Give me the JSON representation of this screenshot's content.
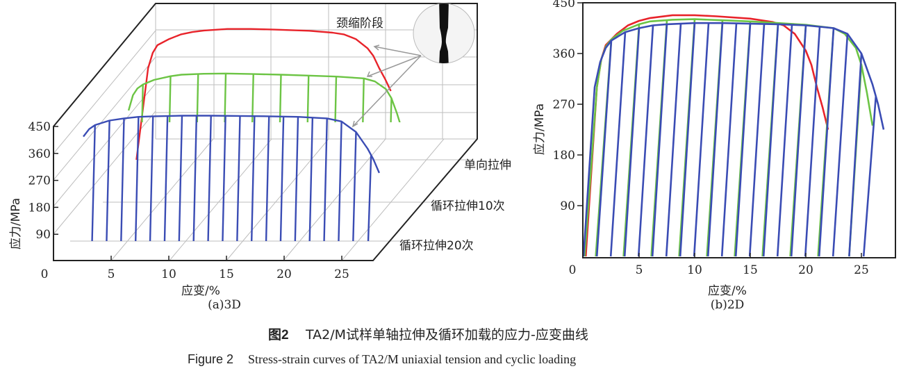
{
  "figure": {
    "caption_cn_label": "图2",
    "caption_cn": "TA2/M试样单轴拉伸及循环加载的应力-应变曲线",
    "caption_en_label": "Figure 2",
    "caption_en": "Stress-strain curves of TA2/M uniaxial tension and cyclic loading"
  },
  "colors": {
    "uniaxial": "#e8232a",
    "cyclic10": "#6cc444",
    "cyclic20": "#3a4cb4",
    "axis": "#222222",
    "grid": "#bdbdbd"
  },
  "series": [
    {
      "name": "单向拉伸",
      "color_key": "uniaxial",
      "envelope": [
        [
          0.2,
          0
        ],
        [
          1.2,
          300
        ],
        [
          1.6,
          350
        ],
        [
          2,
          375
        ],
        [
          3,
          395
        ],
        [
          4,
          410
        ],
        [
          5,
          418
        ],
        [
          6,
          423
        ],
        [
          8,
          428
        ],
        [
          10,
          428
        ],
        [
          12,
          426
        ],
        [
          15,
          422
        ],
        [
          17,
          416
        ],
        [
          18,
          410
        ],
        [
          19,
          395
        ],
        [
          20,
          365
        ],
        [
          20.5,
          340
        ],
        [
          21,
          300
        ],
        [
          21.5,
          265
        ],
        [
          22,
          225
        ]
      ],
      "cycles": []
    },
    {
      "name": "循环拉伸10次",
      "color_key": "cyclic10",
      "envelope": [
        [
          0.1,
          0
        ],
        [
          1.2,
          300
        ],
        [
          1.6,
          350
        ],
        [
          2,
          372
        ],
        [
          2.5,
          385
        ],
        [
          3.5,
          400
        ],
        [
          5,
          412
        ],
        [
          6,
          417
        ],
        [
          8,
          420
        ],
        [
          10,
          421
        ],
        [
          12.5,
          419
        ],
        [
          15,
          417
        ],
        [
          17.5,
          414
        ],
        [
          20,
          411
        ],
        [
          22.5,
          405
        ],
        [
          23.5,
          395
        ],
        [
          24.5,
          370
        ],
        [
          25,
          340
        ],
        [
          25.5,
          290
        ],
        [
          26,
          232
        ]
      ],
      "cycles": [
        [
          2.5,
          1.1
        ],
        [
          5,
          3.6
        ],
        [
          7.5,
          6.1
        ],
        [
          10,
          8.6
        ],
        [
          12.5,
          11.1
        ],
        [
          15,
          13.6
        ],
        [
          17.5,
          16.1
        ],
        [
          20,
          18.6
        ],
        [
          22.5,
          21.1
        ],
        [
          25,
          23.9
        ]
      ]
    },
    {
      "name": "循环拉伸20次",
      "color_key": "cyclic20",
      "envelope": [
        [
          0,
          0
        ],
        [
          1,
          300
        ],
        [
          1.5,
          345
        ],
        [
          2,
          370
        ],
        [
          2.5,
          383
        ],
        [
          3.75,
          398
        ],
        [
          5,
          405
        ],
        [
          6.25,
          410
        ],
        [
          7.5,
          412
        ],
        [
          10,
          414
        ],
        [
          12.5,
          414
        ],
        [
          15,
          413
        ],
        [
          17.5,
          412
        ],
        [
          20,
          410
        ],
        [
          22.5,
          405
        ],
        [
          23.75,
          395
        ],
        [
          25,
          360
        ],
        [
          26,
          305
        ],
        [
          26.5,
          270
        ],
        [
          27,
          225
        ]
      ],
      "cycles": [
        [
          2.5,
          1.2
        ],
        [
          3.75,
          2.45
        ],
        [
          5,
          3.7
        ],
        [
          6.25,
          4.95
        ],
        [
          7.5,
          6.2
        ],
        [
          8.75,
          7.45
        ],
        [
          10,
          8.7
        ],
        [
          11.25,
          9.95
        ],
        [
          12.5,
          11.2
        ],
        [
          13.75,
          12.45
        ],
        [
          15,
          13.7
        ],
        [
          16.25,
          14.95
        ],
        [
          17.5,
          16.2
        ],
        [
          18.75,
          17.45
        ],
        [
          20,
          18.7
        ],
        [
          21.25,
          19.95
        ],
        [
          22.5,
          21.2
        ],
        [
          23.75,
          22.45
        ],
        [
          25,
          23.9
        ],
        [
          26.3,
          25.2
        ]
      ]
    }
  ],
  "chart_data": [
    {
      "type": "line",
      "title": "(a)3D",
      "xlabel": "应变/%",
      "ylabel": "应力/MPa",
      "xticks": [
        "0",
        "5",
        "10",
        "15",
        "20",
        "25"
      ],
      "yticks": [
        "90",
        "180",
        "270",
        "360",
        "450"
      ],
      "xlim": [
        0,
        28
      ],
      "ylim": [
        0,
        450
      ],
      "grid": true,
      "depth_labels": [
        "单向拉伸",
        "循环拉伸10次",
        "循环拉伸20次"
      ],
      "annotation": "颈缩阶段",
      "series_ref": [
        "单向拉伸",
        "循环拉伸10次",
        "循环拉伸20次"
      ]
    },
    {
      "type": "line",
      "title": "(b)2D",
      "xlabel": "应变/%",
      "ylabel": "应力/MPa",
      "xticks": [
        "0",
        "5",
        "10",
        "15",
        "20",
        "25"
      ],
      "yticks": [
        "90",
        "180",
        "270",
        "360",
        "450"
      ],
      "xlim": [
        0,
        28
      ],
      "ylim": [
        0,
        450
      ],
      "grid": false,
      "series_ref": [
        "单向拉伸",
        "循环拉伸10次",
        "循环拉伸20次"
      ]
    }
  ]
}
